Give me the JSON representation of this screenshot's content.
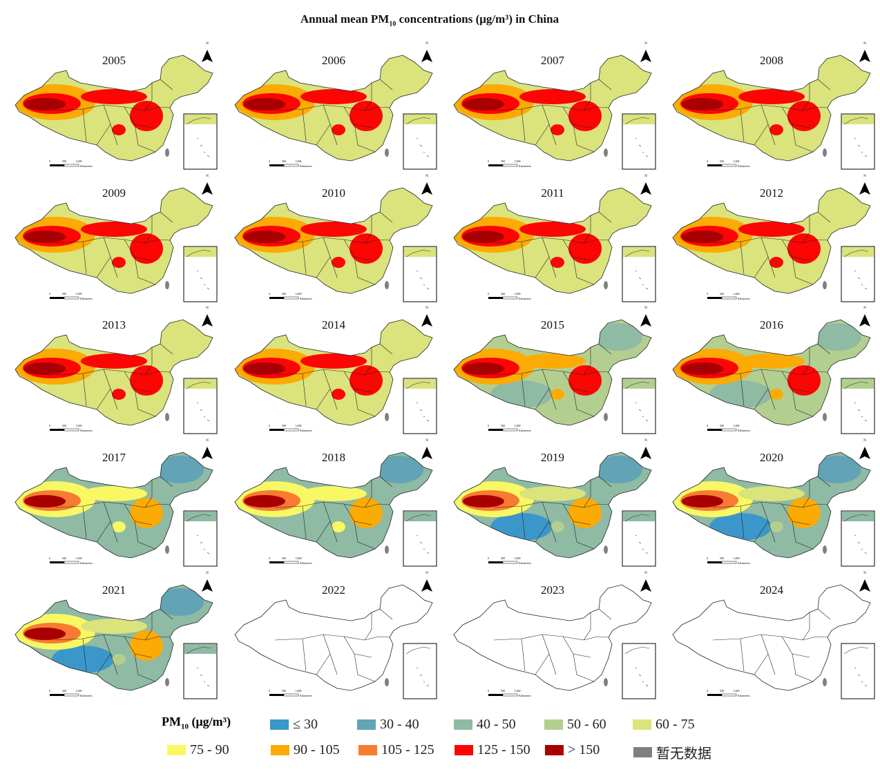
{
  "title": {
    "main": "Annual mean PM",
    "sub": "10",
    "rest": " concentrations (μg/m³) in China"
  },
  "panels": [
    {
      "year": "2005",
      "has_data": true
    },
    {
      "year": "2006",
      "has_data": true
    },
    {
      "year": "2007",
      "has_data": true
    },
    {
      "year": "2008",
      "has_data": true
    },
    {
      "year": "2009",
      "has_data": true
    },
    {
      "year": "2010",
      "has_data": true
    },
    {
      "year": "2011",
      "has_data": true
    },
    {
      "year": "2012",
      "has_data": true
    },
    {
      "year": "2013",
      "has_data": true
    },
    {
      "year": "2014",
      "has_data": true
    },
    {
      "year": "2015",
      "has_data": true
    },
    {
      "year": "2016",
      "has_data": true
    },
    {
      "year": "2017",
      "has_data": true
    },
    {
      "year": "2018",
      "has_data": true
    },
    {
      "year": "2019",
      "has_data": true
    },
    {
      "year": "2020",
      "has_data": true
    },
    {
      "year": "2021",
      "has_data": true
    },
    {
      "year": "2022",
      "has_data": false
    },
    {
      "year": "2023",
      "has_data": false
    },
    {
      "year": "2024",
      "has_data": false
    }
  ],
  "map": {
    "north_label": "N",
    "scale_labels": [
      "0",
      "500",
      "1,000"
    ],
    "scale_unit": "Kilometers"
  },
  "legend": {
    "title_main": "PM",
    "title_sub": "10",
    "title_rest": " (μg/m³)",
    "items": [
      {
        "label": "≤ 30",
        "color": "#3b97c9"
      },
      {
        "label": "30 - 40",
        "color": "#62a4b5"
      },
      {
        "label": "40 - 50",
        "color": "#8fbaa4"
      },
      {
        "label": "50 - 60",
        "color": "#b3cf90"
      },
      {
        "label": "60 - 75",
        "color": "#dae37c"
      },
      {
        "label": "75 - 90",
        "color": "#f8f864"
      },
      {
        "label": "90 - 105",
        "color": "#fcab05"
      },
      {
        "label": "105 - 125",
        "color": "#f77b31"
      },
      {
        "label": "125 - 150",
        "color": "#fc0505"
      },
      {
        "label": "> 150",
        "color": "#a80000"
      },
      {
        "label": "暂无数据",
        "color": "#808080"
      }
    ]
  }
}
